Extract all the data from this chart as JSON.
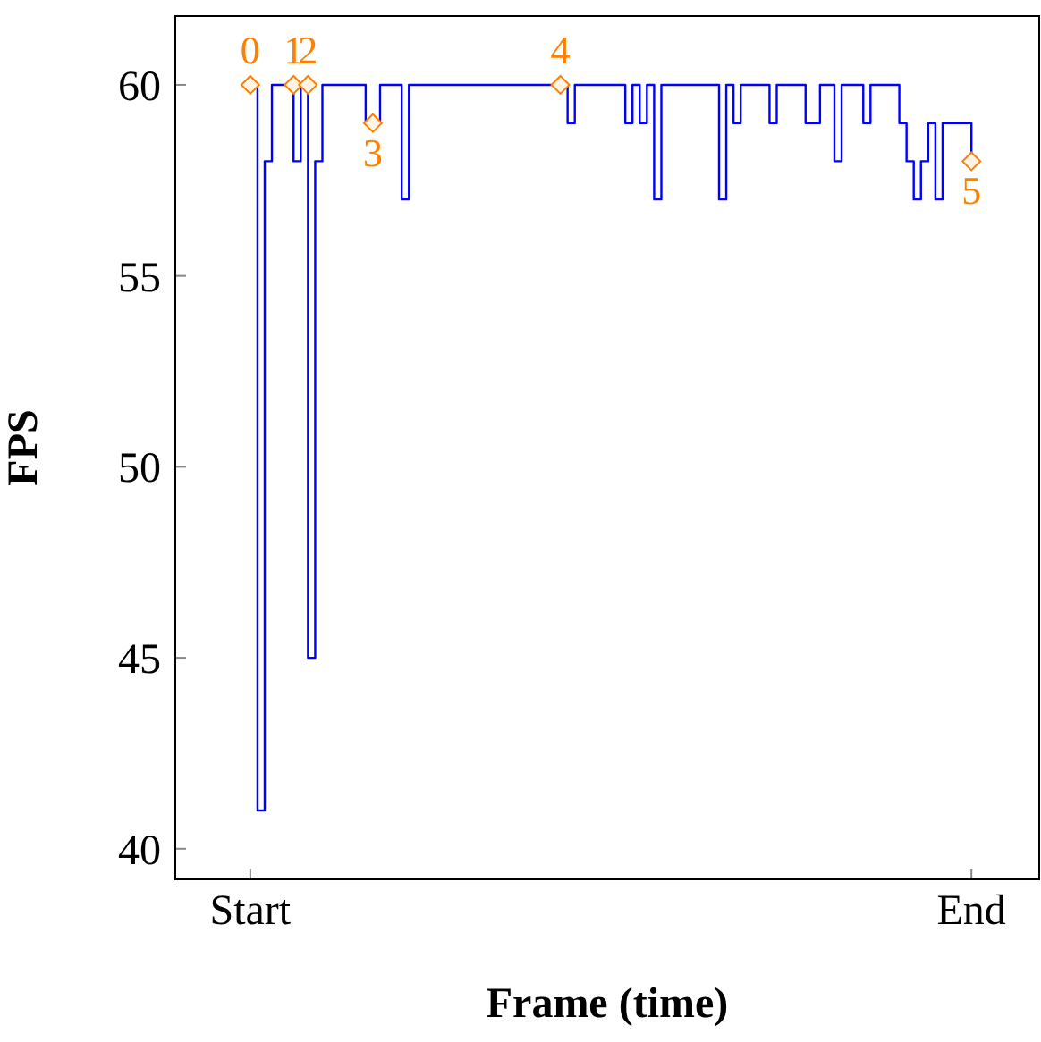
{
  "chart_data": {
    "type": "step",
    "xlabel": "Frame (time)",
    "ylabel": "FPS",
    "categories": [
      "Start",
      null,
      null,
      null,
      null,
      null,
      null,
      null,
      null,
      null,
      null,
      null,
      null,
      null,
      null,
      null,
      null,
      null,
      null,
      null,
      null,
      null,
      null,
      null,
      null,
      null,
      null,
      null,
      null,
      null,
      null,
      null,
      null,
      null,
      null,
      null,
      null,
      null,
      null,
      null,
      null,
      null,
      null,
      null,
      null,
      null,
      null,
      null,
      null,
      null,
      null,
      null,
      null,
      null,
      null,
      null,
      null,
      null,
      null,
      null,
      null,
      null,
      null,
      null,
      null,
      null,
      null,
      null,
      null,
      null,
      null,
      null,
      null,
      null,
      null,
      null,
      null,
      null,
      null,
      null,
      null,
      null,
      null,
      null,
      null,
      null,
      null,
      null,
      null,
      null,
      null,
      null,
      null,
      null,
      null,
      null,
      null,
      null,
      null,
      null,
      "End"
    ],
    "ylim": [
      39.2,
      61.8
    ],
    "yticks": [
      40,
      45,
      50,
      55,
      60
    ],
    "legend": false,
    "annotations": [
      "0",
      "1",
      "2",
      "3",
      "4",
      "5"
    ],
    "series": [
      {
        "color": "#0000ff",
        "marker": "none",
        "values": [
          60,
          41,
          58,
          60,
          60,
          60,
          58,
          60,
          45,
          58,
          60,
          60,
          60,
          60,
          60,
          60,
          59,
          59,
          60,
          60,
          60,
          57,
          60,
          60,
          60,
          60,
          60,
          60,
          60,
          60,
          60,
          60,
          60,
          60,
          60,
          60,
          60,
          60,
          60,
          60,
          60,
          60,
          60,
          60,
          59,
          60,
          60,
          60,
          60,
          60,
          60,
          60,
          59,
          60,
          59,
          60,
          57,
          60,
          60,
          60,
          60,
          60,
          60,
          60,
          60,
          57,
          60,
          59,
          60,
          60,
          60,
          60,
          59,
          60,
          60,
          60,
          60,
          59,
          59,
          60,
          60,
          58,
          60,
          60,
          60,
          59,
          60,
          60,
          60,
          60,
          59,
          58,
          57,
          58,
          59,
          57,
          59,
          59,
          59,
          59,
          58
        ]
      },
      {
        "type": "scatter",
        "color": "#ff8000",
        "marker": "diamond",
        "values": [
          60,
          null,
          null,
          null,
          null,
          null,
          60,
          null,
          60,
          null,
          null,
          null,
          null,
          null,
          null,
          null,
          null,
          59,
          null,
          null,
          null,
          null,
          null,
          null,
          null,
          null,
          null,
          null,
          null,
          null,
          null,
          null,
          null,
          null,
          null,
          null,
          null,
          null,
          null,
          null,
          null,
          null,
          null,
          60,
          null,
          null,
          null,
          null,
          null,
          null,
          null,
          null,
          null,
          null,
          null,
          null,
          null,
          null,
          null,
          null,
          null,
          null,
          null,
          null,
          null,
          null,
          null,
          null,
          null,
          null,
          null,
          null,
          null,
          null,
          null,
          null,
          null,
          null,
          null,
          null,
          null,
          null,
          null,
          null,
          null,
          null,
          null,
          null,
          null,
          null,
          null,
          null,
          null,
          null,
          null,
          null,
          null,
          null,
          null,
          null,
          58
        ]
      }
    ]
  }
}
